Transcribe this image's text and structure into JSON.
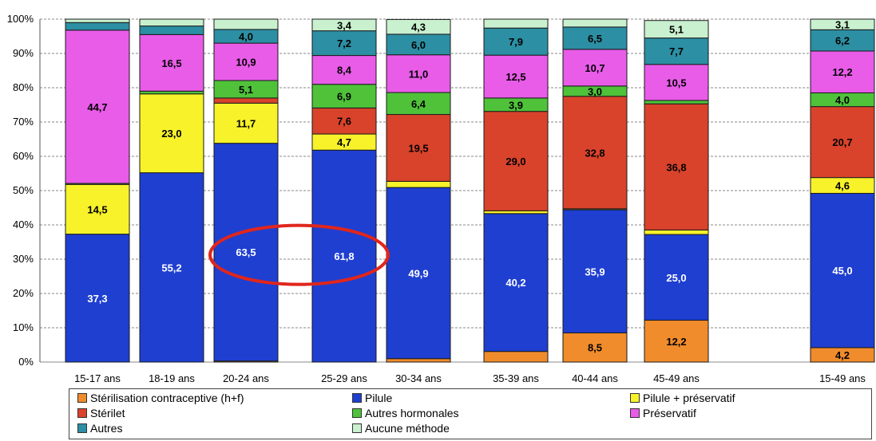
{
  "chart_data": {
    "type": "bar",
    "stacked": true,
    "ylim": [
      0,
      100
    ],
    "yticks": [
      "0%",
      "10%",
      "20%",
      "30%",
      "40%",
      "50%",
      "60%",
      "70%",
      "80%",
      "90%",
      "100%"
    ],
    "categories": [
      "15-17 ans",
      "18-19 ans",
      "20-24 ans",
      "25-29 ans",
      "30-34 ans",
      "35-39 ans",
      "40-44 ans",
      "45-49 ans",
      "15-49 ans"
    ],
    "series": [
      {
        "name": "Stérilisation contraceptive (h+f)",
        "color": "#F08C2C",
        "values": [
          0,
          0,
          0.3,
          0,
          1.0,
          3.1,
          8.5,
          12.2,
          4.2
        ],
        "labels": [
          "",
          "",
          "",
          "",
          "",
          "",
          "8,5",
          "12,2",
          "4,2"
        ]
      },
      {
        "name": "Pilule",
        "color": "#1F3FD1",
        "values": [
          37.3,
          55.2,
          63.5,
          61.8,
          49.9,
          40.2,
          35.9,
          25.0,
          45.0
        ],
        "labels": [
          "37,3",
          "55,2",
          "63,5",
          "61,8",
          "49,9",
          "40,2",
          "35,9",
          "25,0",
          "45,0"
        ]
      },
      {
        "name": "Pilule + préservatif",
        "color": "#F7F22A",
        "values": [
          14.5,
          23.0,
          11.7,
          4.7,
          1.8,
          0.8,
          0.3,
          1.3,
          4.6
        ],
        "labels": [
          "14,5",
          "23,0",
          "11,7",
          "4,7",
          "",
          "",
          "",
          "",
          "4,6"
        ]
      },
      {
        "name": "Stérilet",
        "color": "#D9432B",
        "values": [
          0,
          0,
          1.5,
          7.6,
          19.5,
          29.0,
          32.8,
          36.8,
          20.7
        ],
        "labels": [
          "",
          "",
          "",
          "7,6",
          "19,5",
          "29,0",
          "32,8",
          "36,8",
          "20,7"
        ]
      },
      {
        "name": "Autres hormonales",
        "color": "#4FC23A",
        "values": [
          0.3,
          0.8,
          5.1,
          6.9,
          6.4,
          3.9,
          3.0,
          1.0,
          4.0
        ],
        "labels": [
          "",
          "",
          "5,1",
          "6,9",
          "6,4",
          "3,9",
          "3,0",
          "",
          "4,0"
        ]
      },
      {
        "name": "Préservatif",
        "color": "#E85CE8",
        "values": [
          44.7,
          16.5,
          10.9,
          8.4,
          11.0,
          12.5,
          10.7,
          10.5,
          12.2
        ],
        "labels": [
          "44,7",
          "16,5",
          "10,9",
          "8,4",
          "11,0",
          "12,5",
          "10,7",
          "10,5",
          "12,2"
        ]
      },
      {
        "name": "Autres",
        "color": "#2C8FA3",
        "values": [
          2.2,
          2.5,
          4.0,
          7.2,
          6.0,
          7.9,
          6.5,
          7.7,
          6.2
        ],
        "labels": [
          "",
          "",
          "4,0",
          "7,2",
          "6,0",
          "7,9",
          "6,5",
          "7,7",
          "6,2"
        ]
      },
      {
        "name": "Aucune méthode",
        "color": "#C9F0CF",
        "values": [
          1.0,
          2.0,
          3.0,
          3.4,
          4.3,
          2.6,
          2.3,
          5.1,
          3.1
        ],
        "labels": [
          "",
          "",
          "",
          "3,4",
          "4,3",
          "",
          "",
          "5,1",
          "3,1"
        ]
      }
    ],
    "annotation": {
      "type": "ellipse",
      "color": "#E0261C",
      "around": [
        "20-24 ans",
        "25-29 ans"
      ],
      "series": "Pilule"
    }
  }
}
